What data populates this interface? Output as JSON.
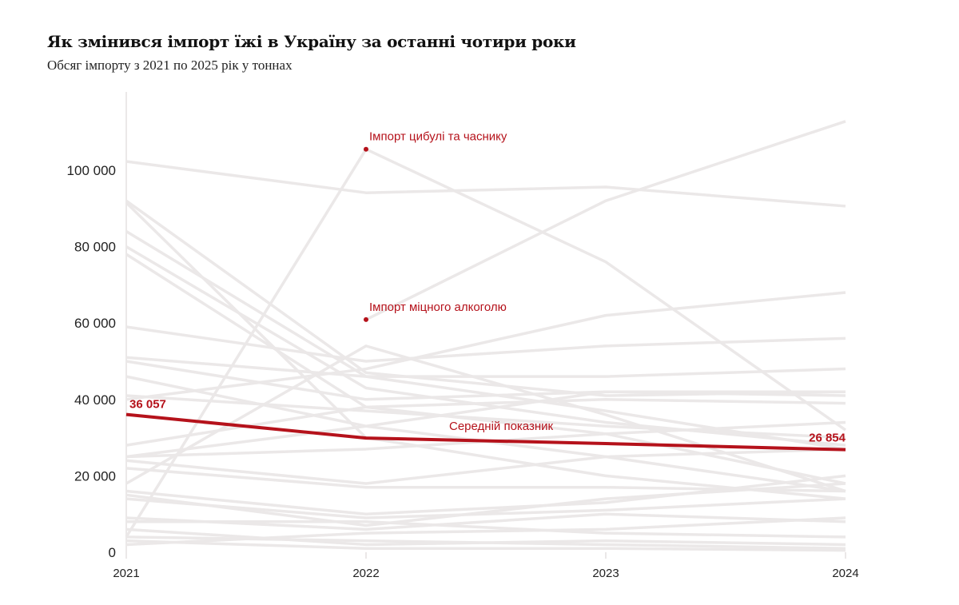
{
  "chart_data": {
    "type": "line",
    "title": "Як змінився імпорт їжі в Україну за останні чотири роки",
    "subtitle": "Обсяг імпорту з 2021 по 2025 рік у тоннах",
    "x": [
      "2021",
      "2022",
      "2023",
      "2024"
    ],
    "ylim": [
      0,
      115000
    ],
    "yticks": [
      0,
      20000,
      40000,
      60000,
      80000,
      100000
    ],
    "ytick_labels": [
      "0",
      "20 000",
      "40 000",
      "60 000",
      "80 000",
      "100 000"
    ],
    "grid": false,
    "highlight_color": "#b5121b",
    "background_color": "#ebe8e8",
    "average": {
      "name": "Середній показник",
      "values": [
        36057,
        29900,
        28450,
        26854
      ],
      "start_label": "36 057",
      "end_label": "26 854"
    },
    "annotations": [
      {
        "text": "Імпорт цибулі та часнику",
        "x": "2022",
        "y": 105500
      },
      {
        "text": "Імпорт міцного алкоголю",
        "x": "2022",
        "y": 60900
      }
    ],
    "series": [
      {
        "values": [
          102300,
          94100,
          95600,
          90600
        ]
      },
      {
        "values": [
          4000,
          105500,
          76000,
          32000
        ]
      },
      {
        "values": [
          null,
          60900,
          92000,
          112800
        ]
      },
      {
        "values": [
          92000,
          47000,
          41000,
          42000
        ]
      },
      {
        "values": [
          91500,
          30000,
          20000,
          14000
        ]
      },
      {
        "values": [
          84000,
          46000,
          37000,
          27000
        ]
      },
      {
        "values": [
          80000,
          43000,
          34000,
          28000
        ]
      },
      {
        "values": [
          78000,
          38000,
          31000,
          18000
        ]
      },
      {
        "values": [
          59000,
          50000,
          54000,
          56000
        ]
      },
      {
        "values": [
          51000,
          46000,
          46000,
          48000
        ]
      },
      {
        "values": [
          50000,
          40000,
          42000,
          42000
        ]
      },
      {
        "values": [
          46000,
          33000,
          25000,
          16000
        ]
      },
      {
        "values": [
          41000,
          37000,
          33000,
          30000
        ]
      },
      {
        "values": [
          40000,
          48000,
          62000,
          68000
        ]
      },
      {
        "values": [
          28000,
          38000,
          40000,
          39000
        ]
      },
      {
        "values": [
          25000,
          33000,
          42000,
          41000
        ]
      },
      {
        "values": [
          24000,
          18000,
          25000,
          27000
        ]
      },
      {
        "values": [
          22000,
          17000,
          17000,
          16000
        ]
      },
      {
        "values": [
          18000,
          54000,
          36000,
          16000
        ]
      },
      {
        "values": [
          16000,
          10000,
          13000,
          20000
        ]
      },
      {
        "values": [
          15000,
          7000,
          14000,
          18000
        ]
      },
      {
        "values": [
          14000,
          9000,
          11000,
          14000
        ]
      },
      {
        "values": [
          9000,
          6000,
          10000,
          8000
        ]
      },
      {
        "values": [
          8000,
          8000,
          5000,
          4000
        ]
      },
      {
        "values": [
          6000,
          2000,
          3000,
          2000
        ]
      },
      {
        "values": [
          4000,
          3000,
          2000,
          1000
        ]
      },
      {
        "values": [
          3000,
          1000,
          1000,
          500
        ]
      },
      {
        "values": [
          2000,
          5000,
          6000,
          9000
        ]
      },
      {
        "values": [
          25000,
          27000,
          31000,
          34000
        ]
      }
    ]
  }
}
